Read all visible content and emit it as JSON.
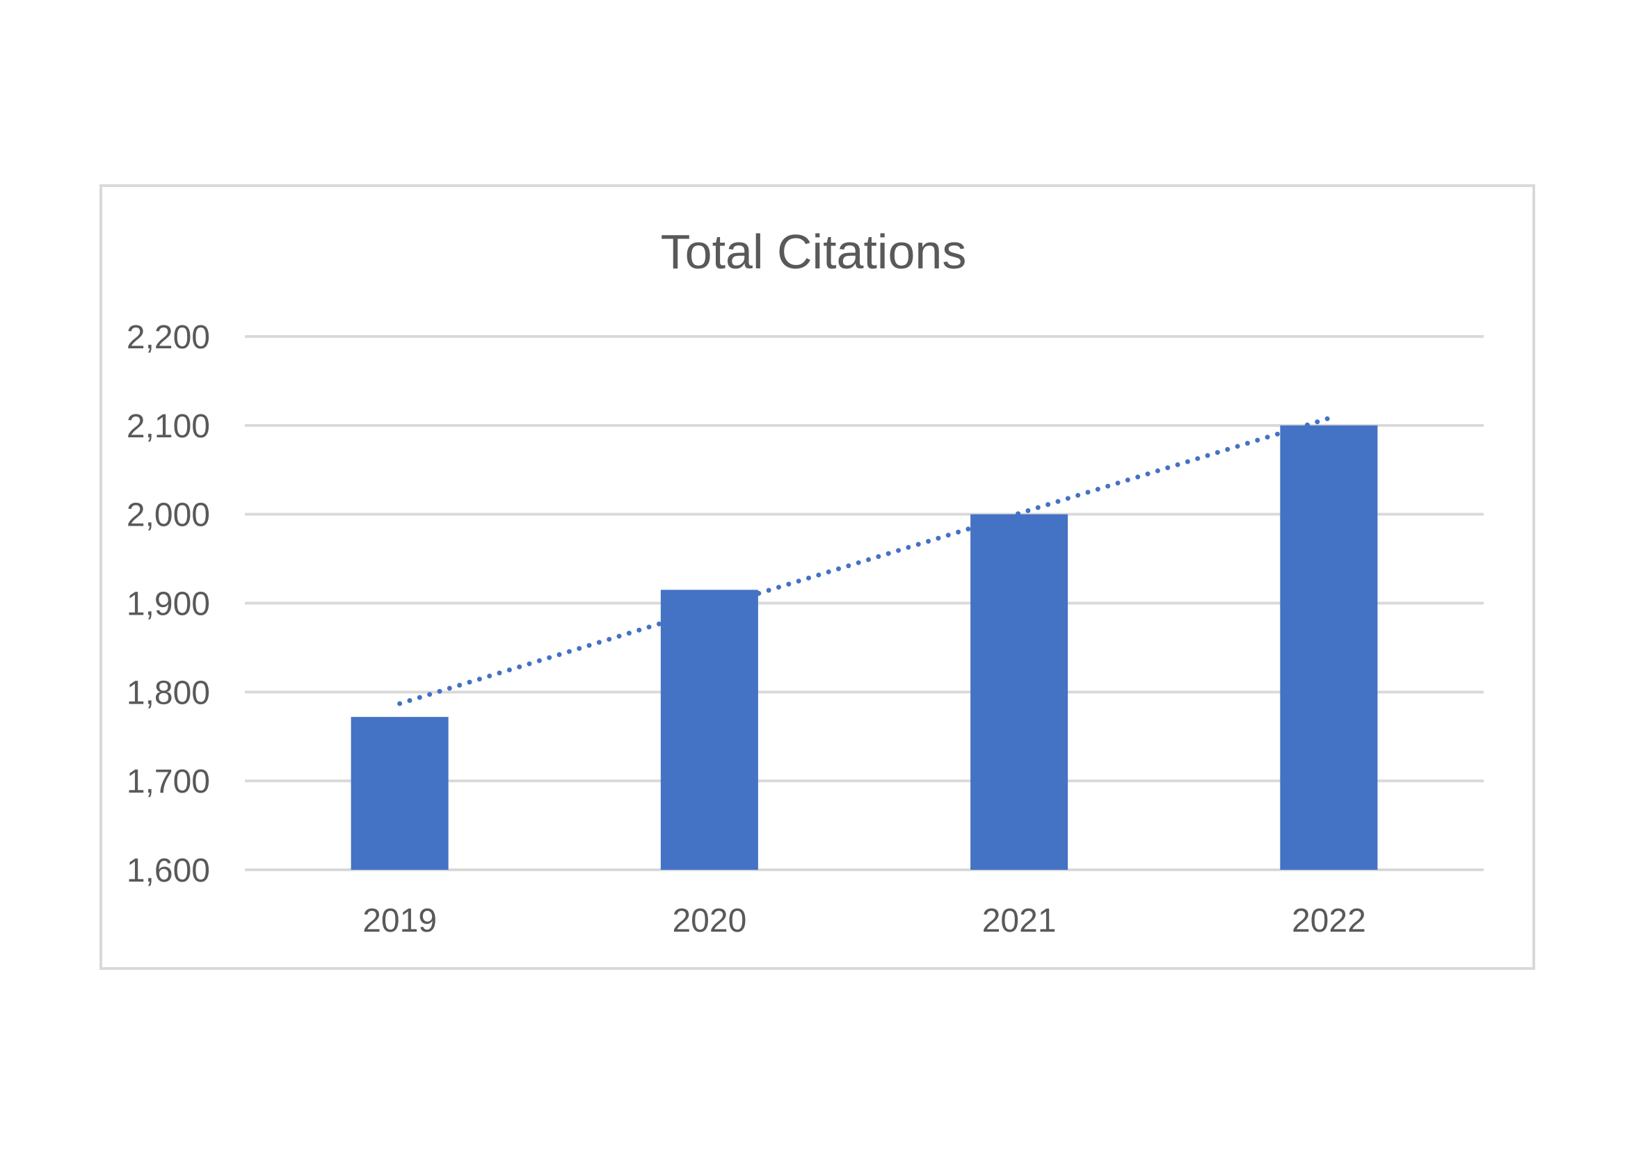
{
  "chart_data": {
    "type": "bar",
    "title": "Total Citations",
    "xlabel": "",
    "ylabel": "",
    "categories": [
      "2019",
      "2020",
      "2021",
      "2022"
    ],
    "values": [
      1772,
      1915,
      2000,
      2100
    ],
    "ylim": [
      1600,
      2200
    ],
    "yticks": [
      1600,
      1700,
      1800,
      1900,
      2000,
      2100,
      2200
    ],
    "ytick_labels": [
      "1,600",
      "1,700",
      "1,800",
      "1,900",
      "2,000",
      "2,100",
      "2,200"
    ],
    "grid": true,
    "legend": "none",
    "trendline": {
      "type": "linear",
      "style": "dotted",
      "values": [
        1787,
        1894,
        2001,
        2108
      ]
    },
    "colors": {
      "bar": "#4472C4",
      "trendline": "#4472C4",
      "grid": "#d9d9d9",
      "text": "#595959",
      "border": "#d9d9d9"
    }
  }
}
